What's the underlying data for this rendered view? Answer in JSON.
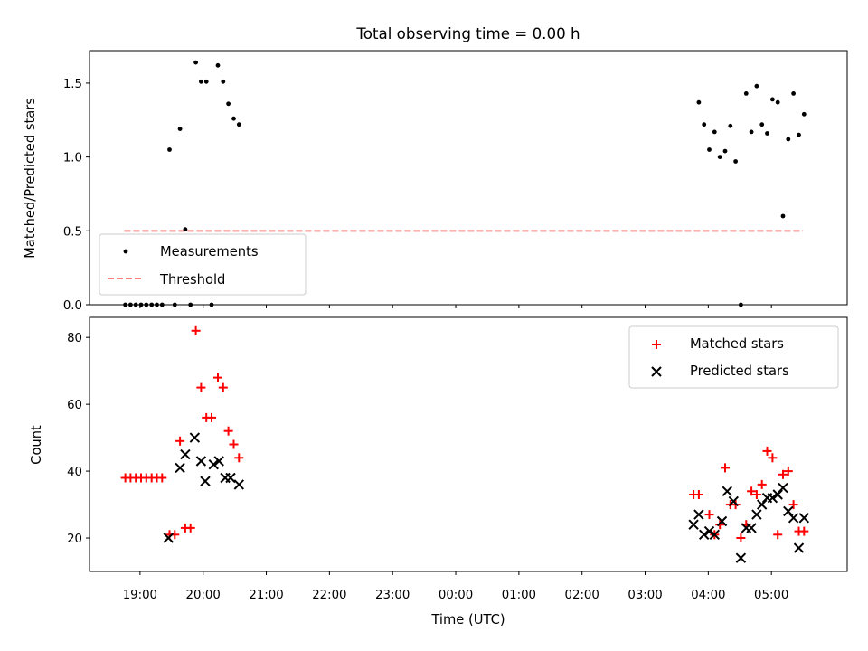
{
  "chart_data": [
    {
      "type": "scatter",
      "title": "Total observing time = 0.00 h",
      "xlabel": "",
      "ylabel": "Matched/Predicted stars",
      "xlim": [
        "18:12",
        "06:12"
      ],
      "ylim": [
        0,
        1.72
      ],
      "yticks": [
        "0.0",
        "0.5",
        "1.0",
        "1.5"
      ],
      "grid": false,
      "legend": {
        "placement": "lower-left",
        "entries": [
          "Measurements",
          "Threshold"
        ]
      },
      "threshold": {
        "name": "Threshold",
        "value": 0.5,
        "x_range": [
          "18:45",
          "05:30"
        ],
        "color": "#ff7f7f",
        "style": "dashed"
      },
      "series": [
        {
          "name": "Measurements",
          "marker": "dot",
          "color": "#000000",
          "x": [
            "18:46",
            "18:51",
            "18:56",
            "19:01",
            "19:06",
            "19:11",
            "19:16",
            "19:21",
            "19:28",
            "19:33",
            "19:38",
            "19:43",
            "19:48",
            "19:53",
            "19:58",
            "20:03",
            "20:08",
            "20:14",
            "20:19",
            "20:24",
            "20:29",
            "20:34",
            "03:51",
            "03:56",
            "04:01",
            "04:06",
            "04:11",
            "04:16",
            "04:21",
            "04:26",
            "04:31",
            "04:36",
            "04:41",
            "04:46",
            "04:51",
            "04:56",
            "05:01",
            "05:06",
            "05:11",
            "05:16",
            "05:21",
            "05:26",
            "05:31"
          ],
          "y": [
            0.0,
            0.0,
            0.0,
            0.0,
            0.0,
            0.0,
            0.0,
            0.0,
            1.05,
            0.0,
            1.19,
            0.51,
            0.0,
            1.64,
            1.51,
            1.51,
            0.0,
            1.62,
            1.51,
            1.36,
            1.26,
            1.22,
            1.37,
            1.22,
            1.05,
            1.17,
            1.0,
            1.04,
            1.21,
            0.97,
            0.0,
            1.43,
            1.17,
            1.48,
            1.22,
            1.16,
            1.39,
            1.37,
            0.6,
            1.12,
            1.43,
            1.15,
            1.29
          ]
        }
      ]
    },
    {
      "type": "scatter",
      "title": "",
      "xlabel": "Time (UTC)",
      "ylabel": "Count",
      "xlim": [
        "18:12",
        "06:12"
      ],
      "ylim": [
        10,
        86
      ],
      "yticks": [
        "20",
        "40",
        "60",
        "80"
      ],
      "xticks": [
        "19:00",
        "20:00",
        "21:00",
        "22:00",
        "23:00",
        "00:00",
        "01:00",
        "02:00",
        "03:00",
        "04:00",
        "05:00"
      ],
      "grid": false,
      "legend": {
        "placement": "top-right",
        "entries": [
          "Matched stars",
          "Predicted stars"
        ]
      },
      "series": [
        {
          "name": "Matched stars",
          "marker": "plus",
          "color": "#ff0000",
          "x": [
            "18:46",
            "18:51",
            "18:56",
            "19:01",
            "19:06",
            "19:11",
            "19:16",
            "19:21",
            "19:28",
            "19:33",
            "19:38",
            "19:43",
            "19:48",
            "19:53",
            "19:58",
            "20:03",
            "20:08",
            "20:14",
            "20:19",
            "20:24",
            "20:29",
            "20:34",
            "03:46",
            "03:51",
            "04:01",
            "04:06",
            "04:11",
            "04:16",
            "04:21",
            "04:26",
            "04:31",
            "04:36",
            "04:41",
            "04:46",
            "04:51",
            "04:56",
            "05:01",
            "05:06",
            "05:11",
            "05:16",
            "05:21",
            "05:26",
            "05:31"
          ],
          "y": [
            38,
            38,
            38,
            38,
            38,
            38,
            38,
            38,
            21,
            21,
            49,
            23,
            23,
            82,
            65,
            56,
            56,
            68,
            65,
            52,
            48,
            44,
            33,
            33,
            27,
            21,
            24,
            41,
            30,
            30,
            20,
            24,
            34,
            33,
            36,
            46,
            44,
            21,
            39,
            40,
            30,
            22,
            22
          ]
        },
        {
          "name": "Predicted stars",
          "marker": "x",
          "color": "#000000",
          "x": [
            "19:27",
            "19:38",
            "19:43",
            "19:52",
            "19:58",
            "20:02",
            "20:10",
            "20:15",
            "20:21",
            "20:26",
            "20:34",
            "03:46",
            "03:51",
            "03:56",
            "04:01",
            "04:06",
            "04:13",
            "04:18",
            "04:24",
            "04:31",
            "04:36",
            "04:41",
            "04:46",
            "04:51",
            "04:56",
            "05:01",
            "05:06",
            "05:11",
            "05:16",
            "05:21",
            "05:26",
            "05:31"
          ],
          "y": [
            20,
            41,
            45,
            50,
            43,
            37,
            42,
            43,
            38,
            38,
            36,
            24,
            27,
            21,
            22,
            21,
            25,
            34,
            31,
            14,
            23,
            23,
            27,
            30,
            32,
            32,
            33,
            35,
            28,
            26,
            17,
            26
          ]
        }
      ]
    }
  ]
}
